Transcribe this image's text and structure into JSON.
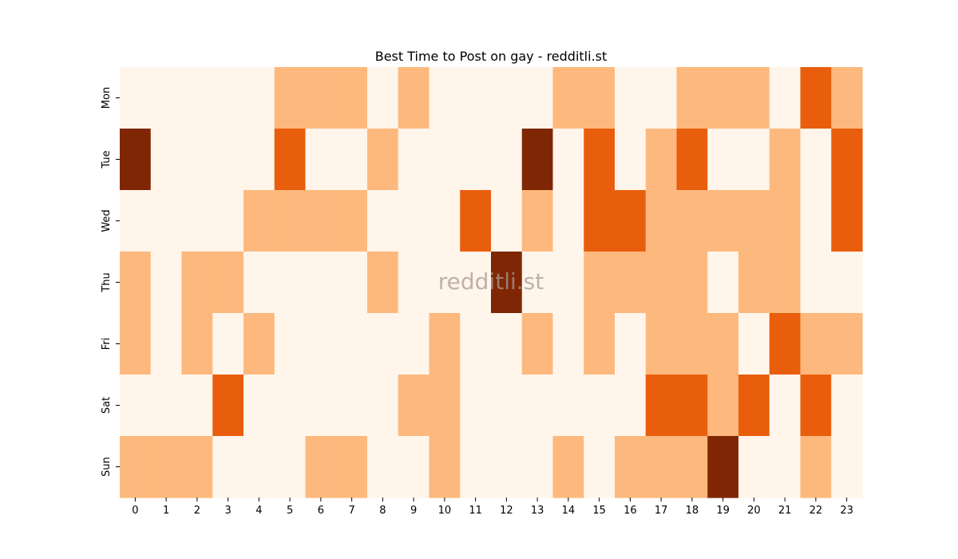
{
  "chart_data": {
    "type": "heatmap",
    "title": "Best Time to Post on gay - redditli.st",
    "xlabel": "",
    "ylabel": "",
    "x_categories": [
      "0",
      "1",
      "2",
      "3",
      "4",
      "5",
      "6",
      "7",
      "8",
      "9",
      "10",
      "11",
      "12",
      "13",
      "14",
      "15",
      "16",
      "17",
      "18",
      "19",
      "20",
      "21",
      "22",
      "23"
    ],
    "y_categories": [
      "Mon",
      "Tue",
      "Wed",
      "Thu",
      "Fri",
      "Sat",
      "Sun"
    ],
    "values": [
      [
        0,
        0,
        0,
        0,
        0,
        1,
        1,
        1,
        0,
        1,
        0,
        0,
        0,
        0,
        1,
        1,
        0,
        0,
        1,
        1,
        1,
        0,
        2,
        1
      ],
      [
        3,
        0,
        0,
        0,
        0,
        2,
        0,
        0,
        1,
        0,
        0,
        0,
        0,
        3,
        0,
        2,
        0,
        1,
        2,
        0,
        0,
        1,
        0,
        2
      ],
      [
        0,
        0,
        0,
        0,
        1,
        1,
        1,
        1,
        0,
        0,
        0,
        2,
        0,
        1,
        0,
        2,
        2,
        1,
        1,
        1,
        1,
        1,
        0,
        2
      ],
      [
        1,
        0,
        1,
        1,
        0,
        0,
        0,
        0,
        1,
        0,
        0,
        0,
        3,
        0,
        0,
        1,
        1,
        1,
        1,
        0,
        1,
        1,
        0,
        0
      ],
      [
        1,
        0,
        1,
        0,
        1,
        0,
        0,
        0,
        0,
        0,
        1,
        0,
        0,
        1,
        0,
        1,
        0,
        1,
        1,
        1,
        0,
        2,
        1,
        1
      ],
      [
        0,
        0,
        0,
        2,
        0,
        0,
        0,
        0,
        0,
        1,
        1,
        0,
        0,
        0,
        0,
        0,
        0,
        2,
        2,
        1,
        2,
        0,
        2,
        0
      ],
      [
        1,
        1,
        1,
        0,
        0,
        0,
        1,
        1,
        0,
        0,
        1,
        0,
        0,
        0,
        1,
        0,
        1,
        1,
        1,
        3,
        0,
        0,
        1,
        0
      ]
    ],
    "value_range": [
      0,
      3
    ],
    "colormap": [
      "#fff5eb",
      "#fdb97d",
      "#e95e0d",
      "#7f2704"
    ],
    "colorbar": false,
    "grid": false
  },
  "watermark": "redditli.st"
}
